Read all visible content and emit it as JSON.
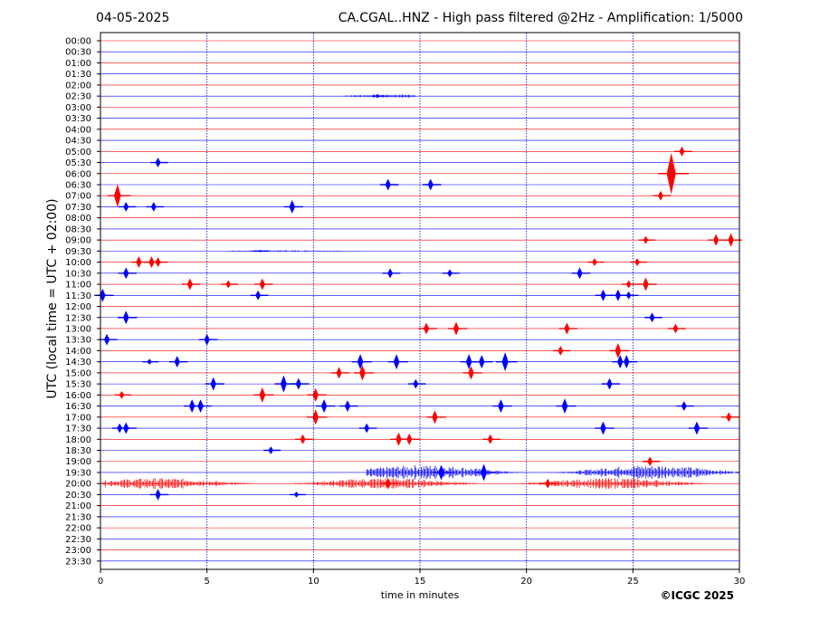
{
  "header": {
    "date": "04-05-2025",
    "title": "CA.CGAL..HNZ - High pass filtered @2Hz - Amplification: 1/5000"
  },
  "footer": {
    "copyright": "©ICGC 2025"
  },
  "colors": {
    "red": "#ff0000",
    "blue": "#0000ff",
    "grid": "#0000aa"
  },
  "chart_data": {
    "type": "line",
    "title": "CA.CGAL..HNZ - High pass filtered @2Hz - Amplification: 1/5000",
    "xlabel": "time in minutes",
    "ylabel": "UTC (local time = UTC + 02:00)",
    "xlim": [
      0,
      30
    ],
    "xticks": [
      0,
      5,
      10,
      15,
      20,
      25,
      30
    ],
    "grid": "vertical-dotted",
    "row_colors": [
      "red",
      "blue"
    ],
    "rows": [
      "00:00",
      "00:30",
      "01:00",
      "01:30",
      "02:00",
      "02:30",
      "03:00",
      "03:30",
      "04:00",
      "04:30",
      "05:00",
      "05:30",
      "06:00",
      "06:30",
      "07:00",
      "07:30",
      "08:00",
      "08:30",
      "09:00",
      "09:30",
      "10:00",
      "10:30",
      "11:00",
      "11:30",
      "12:00",
      "12:30",
      "13:00",
      "13:30",
      "14:00",
      "14:30",
      "15:00",
      "15:30",
      "16:00",
      "16:30",
      "17:00",
      "17:30",
      "18:00",
      "18:30",
      "19:00",
      "19:30",
      "20:00",
      "20:30",
      "21:00",
      "21:30",
      "22:00",
      "22:30",
      "23:00",
      "23:30"
    ],
    "events": [
      {
        "row": "02:30",
        "t": 13.0,
        "amp": 2,
        "noise": true,
        "span": [
          11.5,
          14.8
        ]
      },
      {
        "row": "05:00",
        "t": 27.3,
        "amp": 5
      },
      {
        "row": "05:30",
        "t": 2.7,
        "amp": 5
      },
      {
        "row": "06:00",
        "t": 26.8,
        "amp": 22
      },
      {
        "row": "06:30",
        "t": 13.5,
        "amp": 6
      },
      {
        "row": "06:30",
        "t": 15.5,
        "amp": 6
      },
      {
        "row": "07:00",
        "t": 0.8,
        "amp": 12
      },
      {
        "row": "07:00",
        "t": 26.3,
        "amp": 5
      },
      {
        "row": "07:30",
        "t": 1.2,
        "amp": 5
      },
      {
        "row": "07:30",
        "t": 2.5,
        "amp": 5
      },
      {
        "row": "07:30",
        "t": 9.0,
        "amp": 7
      },
      {
        "row": "09:00",
        "t": 25.6,
        "amp": 4
      },
      {
        "row": "09:00",
        "t": 28.9,
        "amp": 6
      },
      {
        "row": "09:00",
        "t": 29.6,
        "amp": 7
      },
      {
        "row": "09:30",
        "t": 7.5,
        "amp": 1,
        "noise": true,
        "span": [
          6.0,
          12.5
        ]
      },
      {
        "row": "10:00",
        "t": 1.8,
        "amp": 6
      },
      {
        "row": "10:00",
        "t": 2.4,
        "amp": 6
      },
      {
        "row": "10:00",
        "t": 2.7,
        "amp": 5
      },
      {
        "row": "10:00",
        "t": 23.2,
        "amp": 4
      },
      {
        "row": "10:00",
        "t": 25.2,
        "amp": 4
      },
      {
        "row": "10:30",
        "t": 1.2,
        "amp": 6
      },
      {
        "row": "10:30",
        "t": 13.6,
        "amp": 5
      },
      {
        "row": "10:30",
        "t": 16.4,
        "amp": 4
      },
      {
        "row": "10:30",
        "t": 22.5,
        "amp": 6
      },
      {
        "row": "11:00",
        "t": 4.2,
        "amp": 6
      },
      {
        "row": "11:00",
        "t": 6.0,
        "amp": 4
      },
      {
        "row": "11:00",
        "t": 7.6,
        "amp": 6
      },
      {
        "row": "11:00",
        "t": 24.8,
        "amp": 4
      },
      {
        "row": "11:00",
        "t": 25.6,
        "amp": 7
      },
      {
        "row": "11:30",
        "t": 0.1,
        "amp": 7
      },
      {
        "row": "11:30",
        "t": 7.4,
        "amp": 5
      },
      {
        "row": "11:30",
        "t": 23.6,
        "amp": 6
      },
      {
        "row": "11:30",
        "t": 24.3,
        "amp": 6
      },
      {
        "row": "11:30",
        "t": 24.8,
        "amp": 4
      },
      {
        "row": "12:30",
        "t": 1.2,
        "amp": 7
      },
      {
        "row": "12:30",
        "t": 25.9,
        "amp": 5
      },
      {
        "row": "13:00",
        "t": 15.3,
        "amp": 6
      },
      {
        "row": "13:00",
        "t": 16.7,
        "amp": 7
      },
      {
        "row": "13:00",
        "t": 21.9,
        "amp": 6
      },
      {
        "row": "13:00",
        "t": 27.0,
        "amp": 5
      },
      {
        "row": "13:30",
        "t": 0.3,
        "amp": 6
      },
      {
        "row": "13:30",
        "t": 5.0,
        "amp": 6
      },
      {
        "row": "14:00",
        "t": 21.6,
        "amp": 5
      },
      {
        "row": "14:00",
        "t": 24.3,
        "amp": 8
      },
      {
        "row": "14:30",
        "t": 2.3,
        "amp": 3
      },
      {
        "row": "14:30",
        "t": 3.6,
        "amp": 6
      },
      {
        "row": "14:30",
        "t": 12.2,
        "amp": 8
      },
      {
        "row": "14:30",
        "t": 13.9,
        "amp": 8
      },
      {
        "row": "14:30",
        "t": 17.3,
        "amp": 8
      },
      {
        "row": "14:30",
        "t": 17.9,
        "amp": 7
      },
      {
        "row": "14:30",
        "t": 19.0,
        "amp": 10
      },
      {
        "row": "14:30",
        "t": 24.4,
        "amp": 7
      },
      {
        "row": "14:30",
        "t": 24.7,
        "amp": 7
      },
      {
        "row": "15:00",
        "t": 11.2,
        "amp": 6
      },
      {
        "row": "15:00",
        "t": 12.3,
        "amp": 8
      },
      {
        "row": "15:00",
        "t": 17.4,
        "amp": 7
      },
      {
        "row": "15:30",
        "t": 5.3,
        "amp": 7
      },
      {
        "row": "15:30",
        "t": 8.6,
        "amp": 9
      },
      {
        "row": "15:30",
        "t": 9.3,
        "amp": 6
      },
      {
        "row": "15:30",
        "t": 14.8,
        "amp": 5
      },
      {
        "row": "15:30",
        "t": 23.9,
        "amp": 6
      },
      {
        "row": "16:00",
        "t": 1.0,
        "amp": 4
      },
      {
        "row": "16:00",
        "t": 7.6,
        "amp": 8
      },
      {
        "row": "16:00",
        "t": 10.1,
        "amp": 7
      },
      {
        "row": "16:30",
        "t": 4.3,
        "amp": 7
      },
      {
        "row": "16:30",
        "t": 4.7,
        "amp": 7
      },
      {
        "row": "16:30",
        "t": 10.5,
        "amp": 7
      },
      {
        "row": "16:30",
        "t": 11.6,
        "amp": 6
      },
      {
        "row": "16:30",
        "t": 18.8,
        "amp": 7
      },
      {
        "row": "16:30",
        "t": 21.8,
        "amp": 8
      },
      {
        "row": "16:30",
        "t": 27.4,
        "amp": 5
      },
      {
        "row": "17:00",
        "t": 10.1,
        "amp": 8
      },
      {
        "row": "17:00",
        "t": 15.7,
        "amp": 7
      },
      {
        "row": "17:00",
        "t": 29.5,
        "amp": 5
      },
      {
        "row": "17:30",
        "t": 0.9,
        "amp": 5
      },
      {
        "row": "17:30",
        "t": 1.2,
        "amp": 6
      },
      {
        "row": "17:30",
        "t": 12.5,
        "amp": 5
      },
      {
        "row": "17:30",
        "t": 23.6,
        "amp": 7
      },
      {
        "row": "17:30",
        "t": 28.0,
        "amp": 7
      },
      {
        "row": "18:00",
        "t": 9.5,
        "amp": 5
      },
      {
        "row": "18:00",
        "t": 14.0,
        "amp": 7
      },
      {
        "row": "18:00",
        "t": 14.5,
        "amp": 6
      },
      {
        "row": "18:00",
        "t": 18.3,
        "amp": 5
      },
      {
        "row": "18:30",
        "t": 8.0,
        "amp": 4
      },
      {
        "row": "19:00",
        "t": 25.8,
        "amp": 5
      },
      {
        "row": "19:30",
        "t": 16.0,
        "amp": 8,
        "noise": true,
        "span": [
          12.5,
          30.0
        ]
      },
      {
        "row": "19:30",
        "t": 18.0,
        "amp": 9
      },
      {
        "row": "20:00",
        "t": 13.5,
        "amp": 6,
        "noise": true,
        "span": [
          0.0,
          30.0
        ]
      },
      {
        "row": "20:00",
        "t": 21.0,
        "amp": 5
      },
      {
        "row": "20:30",
        "t": 2.7,
        "amp": 6
      },
      {
        "row": "20:30",
        "t": 9.2,
        "amp": 3
      }
    ]
  }
}
